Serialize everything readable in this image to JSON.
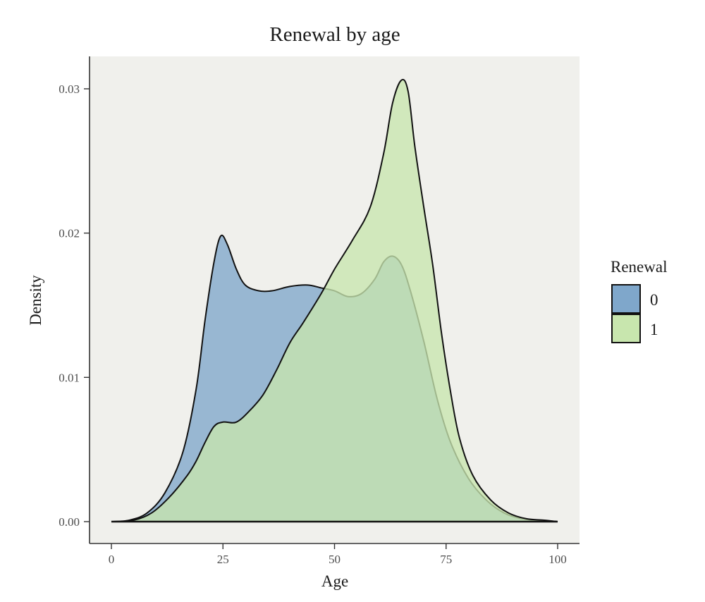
{
  "chart_data": {
    "type": "area",
    "title": "Renewal by age",
    "xlabel": "Age",
    "ylabel": "Density",
    "xlim": [
      0,
      100
    ],
    "ylim": [
      0,
      0.031
    ],
    "x_ticks": [
      0,
      25,
      50,
      75,
      100
    ],
    "x_tick_labels": [
      "0",
      "25",
      "50",
      "75",
      "100"
    ],
    "y_ticks": [
      0,
      0.01,
      0.02,
      0.03
    ],
    "y_tick_labels": [
      "0.00",
      "0.01",
      "0.02",
      "0.03"
    ],
    "grid": false,
    "legend": {
      "title": "Renewal",
      "placement": "right"
    },
    "background_color": "#f0f0ec",
    "series": [
      {
        "name": "0",
        "color": "#7fa7cb",
        "points": [
          [
            0,
            0
          ],
          [
            4,
            0.0001
          ],
          [
            8,
            0.0006
          ],
          [
            12,
            0.002
          ],
          [
            16,
            0.0048
          ],
          [
            19,
            0.0092
          ],
          [
            21,
            0.014
          ],
          [
            23,
            0.018
          ],
          [
            24.5,
            0.0198
          ],
          [
            26,
            0.0192
          ],
          [
            28,
            0.0175
          ],
          [
            30,
            0.0164
          ],
          [
            33,
            0.016
          ],
          [
            36,
            0.016
          ],
          [
            40,
            0.0163
          ],
          [
            44,
            0.0164
          ],
          [
            47,
            0.0162
          ],
          [
            50,
            0.016
          ],
          [
            53,
            0.0156
          ],
          [
            56,
            0.0158
          ],
          [
            59,
            0.0168
          ],
          [
            61,
            0.018
          ],
          [
            63,
            0.0184
          ],
          [
            65,
            0.0178
          ],
          [
            67,
            0.016
          ],
          [
            70,
            0.0125
          ],
          [
            73,
            0.0085
          ],
          [
            76,
            0.0055
          ],
          [
            80,
            0.003
          ],
          [
            84,
            0.0015
          ],
          [
            88,
            0.0006
          ],
          [
            92,
            0.0002
          ],
          [
            96,
            0.0001
          ],
          [
            100,
            0
          ]
        ]
      },
      {
        "name": "1",
        "color": "#c8e6ae",
        "points": [
          [
            0,
            0
          ],
          [
            5,
            0.0001
          ],
          [
            9,
            0.0006
          ],
          [
            13,
            0.0017
          ],
          [
            17,
            0.0032
          ],
          [
            19,
            0.0042
          ],
          [
            21,
            0.0055
          ],
          [
            23,
            0.0066
          ],
          [
            25,
            0.0069
          ],
          [
            28,
            0.0069
          ],
          [
            31,
            0.0077
          ],
          [
            34,
            0.0088
          ],
          [
            37,
            0.0105
          ],
          [
            40,
            0.0124
          ],
          [
            43,
            0.0138
          ],
          [
            47,
            0.0158
          ],
          [
            50,
            0.0175
          ],
          [
            54,
            0.0195
          ],
          [
            58,
            0.0218
          ],
          [
            61,
            0.0255
          ],
          [
            63,
            0.029
          ],
          [
            65,
            0.0306
          ],
          [
            66.5,
            0.0298
          ],
          [
            68,
            0.026
          ],
          [
            70,
            0.0218
          ],
          [
            72,
            0.0178
          ],
          [
            74,
            0.013
          ],
          [
            76,
            0.009
          ],
          [
            78,
            0.0058
          ],
          [
            81,
            0.0032
          ],
          [
            85,
            0.0015
          ],
          [
            89,
            0.0006
          ],
          [
            93,
            0.0002
          ],
          [
            97,
            0.0001
          ],
          [
            100,
            0
          ]
        ]
      }
    ]
  }
}
